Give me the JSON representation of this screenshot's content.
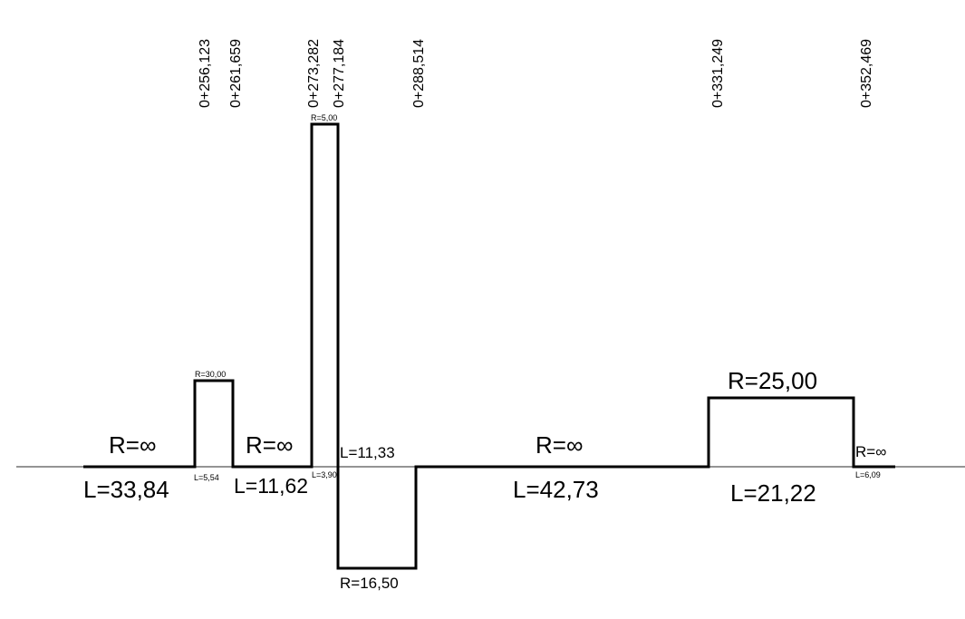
{
  "diagram": {
    "colors": {
      "line": "#000000",
      "baseline": "#555555",
      "background": "#ffffff"
    },
    "stations": [
      "0+256,123",
      "0+261,659",
      "0+273,282",
      "0+277,184",
      "0+288,514",
      "0+331,249",
      "0+352,469"
    ],
    "radius_labels": [
      "R=∞",
      "R=30,00",
      "R=∞",
      "R=5,00",
      "R=16,50",
      "R=∞",
      "R=25,00",
      "R=∞"
    ],
    "length_labels": [
      "L=33,84",
      "L=5,54",
      "L=11,62",
      "L=3,90",
      "L=11,33",
      "L=42,73",
      "L=21,22",
      "L=6,09"
    ]
  }
}
